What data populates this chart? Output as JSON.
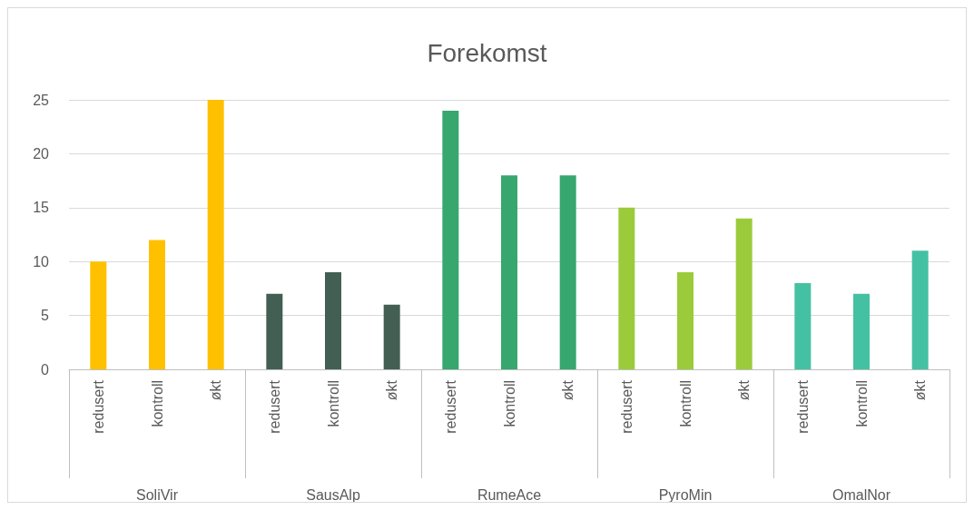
{
  "chart_data": {
    "type": "bar",
    "title": "Forekomst",
    "categories": [
      "redusert",
      "kontroll",
      "økt",
      "redusert",
      "kontroll",
      "økt",
      "redusert",
      "kontroll",
      "økt",
      "redusert",
      "kontroll",
      "økt",
      "redusert",
      "kontroll",
      "økt"
    ],
    "values": [
      10,
      12,
      25,
      7,
      9,
      6,
      24,
      18,
      18,
      15,
      9,
      14,
      8,
      7,
      11
    ],
    "colors": [
      "#ffc000",
      "#ffc000",
      "#ffc000",
      "#435e52",
      "#435e52",
      "#435e52",
      "#37a76f",
      "#37a76f",
      "#37a76f",
      "#9bcb3b",
      "#9bcb3b",
      "#9bcb3b",
      "#44c1a3",
      "#44c1a3",
      "#44c1a3"
    ],
    "annotations": [
      "SoliVir",
      "SausAlp",
      "RumeAce",
      "PyroMin",
      "OmalNor"
    ],
    "ylim": [
      0,
      25
    ],
    "yticks": [
      0,
      5,
      10,
      15,
      20,
      25
    ],
    "grid": "y"
  }
}
